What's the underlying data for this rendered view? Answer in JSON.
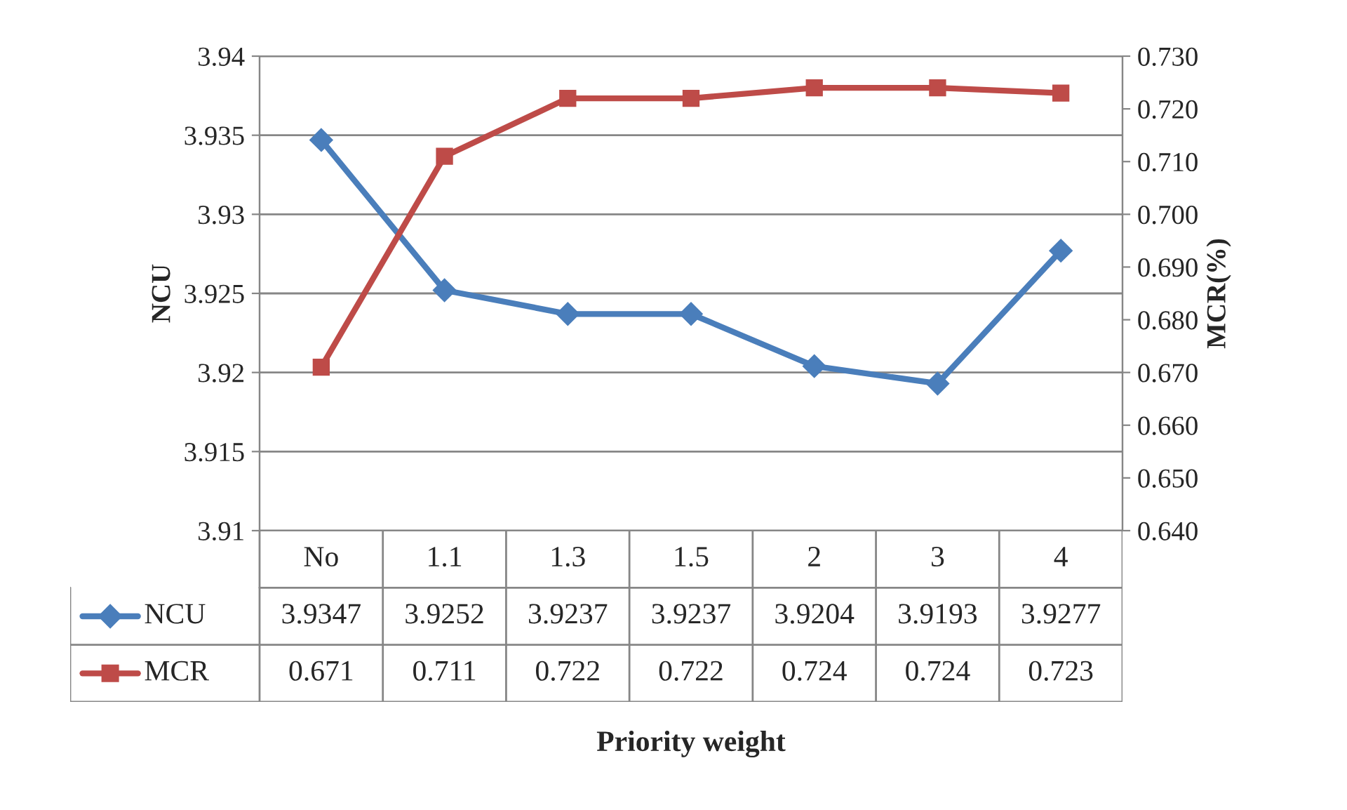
{
  "chart_data": {
    "type": "line",
    "annotations": [
      "Priority weight"
    ],
    "ylabel": "NCU",
    "y2label": "MCR(%)",
    "categories": [
      "No",
      "1.1",
      "1.3",
      "1.5",
      "2",
      "3",
      "4"
    ],
    "series": [
      {
        "name": "NCU",
        "color": "#4a7ebb",
        "marker": "diamond",
        "values": [
          3.9347,
          3.9252,
          3.9237,
          3.9237,
          3.9204,
          3.9193,
          3.9277
        ]
      },
      {
        "name": "MCR",
        "color": "#be4b48",
        "marker": "square",
        "axis": "y2",
        "values": [
          0.671,
          0.711,
          0.722,
          0.722,
          0.724,
          0.724,
          0.723
        ]
      }
    ],
    "ylim": [
      3.91,
      3.94
    ],
    "yticks": [
      3.91,
      3.915,
      3.92,
      3.925,
      3.93,
      3.935,
      3.94
    ],
    "y2lim": [
      0.64,
      0.73
    ],
    "y2ticks": [
      {
        "value": 0.64,
        "label": "0.640"
      },
      {
        "value": 0.65,
        "label": "0.650"
      },
      {
        "value": 0.66,
        "label": "0.660"
      },
      {
        "value": 0.67,
        "label": "0.670"
      },
      {
        "value": 0.68,
        "label": "0.680"
      },
      {
        "value": 0.69,
        "label": "0.690"
      },
      {
        "value": 0.7,
        "label": "0.700"
      },
      {
        "value": 0.71,
        "label": "0.710"
      },
      {
        "value": 0.72,
        "label": "0.720"
      },
      {
        "value": 0.73,
        "label": "0.730"
      }
    ],
    "grid": "y",
    "legend": "bottom",
    "data_labels": true,
    "line_style": "solid"
  }
}
